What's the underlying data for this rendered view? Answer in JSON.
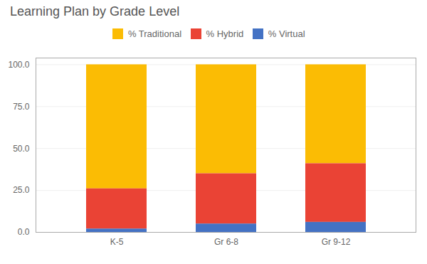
{
  "chart_data": {
    "type": "bar",
    "title": "Learning Plan by Grade Level",
    "stacked": true,
    "categories": [
      "K-5",
      "Gr 6-8",
      "Gr 9-12"
    ],
    "series": [
      {
        "name": "% Traditional",
        "color": "#FBBC04",
        "values": [
          74.0,
          65.0,
          59.0
        ]
      },
      {
        "name": "% Hybrid",
        "color": "#EA4335",
        "values": [
          24.0,
          30.0,
          35.0
        ]
      },
      {
        "name": "% Virtual",
        "color": "#4472C4",
        "values": [
          2.0,
          5.0,
          6.0
        ]
      }
    ],
    "ylim": [
      0,
      104
    ],
    "yticks": [
      {
        "value": 0,
        "label": "0.0"
      },
      {
        "value": 25,
        "label": "25.0"
      },
      {
        "value": 50,
        "label": "50.0"
      },
      {
        "value": 75,
        "label": "75.0"
      },
      {
        "value": 100,
        "label": "100.0"
      }
    ],
    "grid": true,
    "legend": "top"
  }
}
